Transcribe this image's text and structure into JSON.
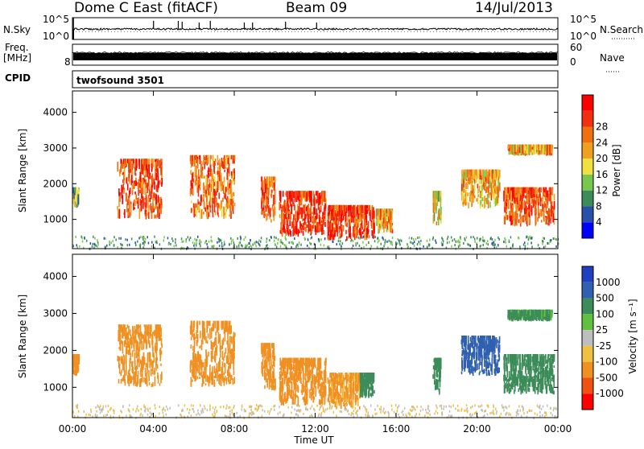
{
  "header": {
    "station": "Dome C East (fitACF)",
    "beam": "Beam 09",
    "date": "14/Jul/2013"
  },
  "noise_panel": {
    "left_label": "N.Sky",
    "left_ticks": [
      "10^5",
      "10^0"
    ],
    "right_label": "N.Search",
    "right_ticks": [
      "10^5",
      "10^0"
    ]
  },
  "freq_panel": {
    "left_label_1": "Freq.",
    "left_label_2": "[MHz]",
    "left_tick": "8",
    "right_label": "Nave",
    "right_ticks": [
      "60",
      "0"
    ]
  },
  "cpid_panel": {
    "label": "CPID",
    "value": "twofsound 3501"
  },
  "colors": {
    "power_scale": [
      "#0000ff",
      "#2850a8",
      "#3c8c5a",
      "#78c850",
      "#f0e040",
      "#f0a020",
      "#f07010",
      "#f03010",
      "#ff0000"
    ],
    "velocity_scale": [
      "#2040c0",
      "#3060b0",
      "#3c8c5a",
      "#60c040",
      "#bebebe",
      "#f0c040",
      "#f09020",
      "#f05010",
      "#ff0000"
    ]
  },
  "chart_data": [
    {
      "type": "heatmap",
      "name": "power",
      "xlabel": "Time UT",
      "ylabel": "Slant Range [km]",
      "x_ticks": [
        "00:00",
        "04:00",
        "08:00",
        "12:00",
        "16:00",
        "20:00",
        "00:00"
      ],
      "y_ticks": [
        1000,
        2000,
        3000,
        4000
      ],
      "ylim": [
        180,
        4600
      ],
      "colorbar": {
        "label": "Power [dB]",
        "ticks": [
          "4",
          "8",
          "12",
          "16",
          "20",
          "24",
          "28"
        ]
      },
      "echo_regions": [
        {
          "t_start": 0.0,
          "t_end": 0.3,
          "r_min": 1300,
          "r_max": 1900,
          "value": 12
        },
        {
          "t_start": 2.2,
          "t_end": 4.4,
          "r_min": 1000,
          "r_max": 2700,
          "value": 26
        },
        {
          "t_start": 5.8,
          "t_end": 8.0,
          "r_min": 1000,
          "r_max": 2800,
          "value": 24
        },
        {
          "t_start": 9.3,
          "t_end": 10.0,
          "r_min": 900,
          "r_max": 2200,
          "value": 24
        },
        {
          "t_start": 10.2,
          "t_end": 12.5,
          "r_min": 500,
          "r_max": 1800,
          "value": 28
        },
        {
          "t_start": 12.6,
          "t_end": 14.9,
          "r_min": 400,
          "r_max": 1400,
          "value": 28
        },
        {
          "t_start": 15.0,
          "t_end": 15.8,
          "r_min": 600,
          "r_max": 1300,
          "value": 20
        },
        {
          "t_start": 17.8,
          "t_end": 18.2,
          "r_min": 800,
          "r_max": 1800,
          "value": 16
        },
        {
          "t_start": 19.2,
          "t_end": 21.1,
          "r_min": 1300,
          "r_max": 2400,
          "value": 20
        },
        {
          "t_start": 21.3,
          "t_end": 23.8,
          "r_min": 800,
          "r_max": 1900,
          "value": 26
        },
        {
          "t_start": 21.5,
          "t_end": 23.7,
          "r_min": 2800,
          "r_max": 3100,
          "value": 20
        }
      ]
    },
    {
      "type": "heatmap",
      "name": "velocity",
      "xlabel": "Time UT",
      "ylabel": "Slant Range [km]",
      "x_ticks": [
        "00:00",
        "04:00",
        "08:00",
        "12:00",
        "16:00",
        "20:00",
        "00:00"
      ],
      "y_ticks": [
        1000,
        2000,
        3000,
        4000
      ],
      "ylim": [
        180,
        4600
      ],
      "colorbar": {
        "label": "Velocity [m s⁻¹]",
        "ticks": [
          "1000",
          "500",
          "100",
          "25",
          "-25",
          "-100",
          "-500",
          "-1000"
        ]
      },
      "echo_regions": [
        {
          "t_start": 0.0,
          "t_end": 0.3,
          "r_min": 1300,
          "r_max": 1900,
          "value": -300
        },
        {
          "t_start": 2.2,
          "t_end": 4.4,
          "r_min": 1000,
          "r_max": 2700,
          "value": -300
        },
        {
          "t_start": 5.8,
          "t_end": 8.0,
          "r_min": 1000,
          "r_max": 2800,
          "value": -300
        },
        {
          "t_start": 9.3,
          "t_end": 10.0,
          "r_min": 900,
          "r_max": 2200,
          "value": -300
        },
        {
          "t_start": 10.2,
          "t_end": 12.5,
          "r_min": 500,
          "r_max": 1800,
          "value": -200
        },
        {
          "t_start": 12.6,
          "t_end": 14.2,
          "r_min": 400,
          "r_max": 1400,
          "value": -150
        },
        {
          "t_start": 14.2,
          "t_end": 14.9,
          "r_min": 700,
          "r_max": 1400,
          "value": 200
        },
        {
          "t_start": 17.8,
          "t_end": 18.2,
          "r_min": 800,
          "r_max": 1800,
          "value": 400
        },
        {
          "t_start": 19.2,
          "t_end": 21.1,
          "r_min": 1300,
          "r_max": 2400,
          "value": 700
        },
        {
          "t_start": 21.3,
          "t_end": 23.8,
          "r_min": 800,
          "r_max": 1900,
          "value": 250
        },
        {
          "t_start": 21.5,
          "t_end": 23.7,
          "r_min": 2800,
          "r_max": 3100,
          "value": 150
        }
      ]
    }
  ]
}
